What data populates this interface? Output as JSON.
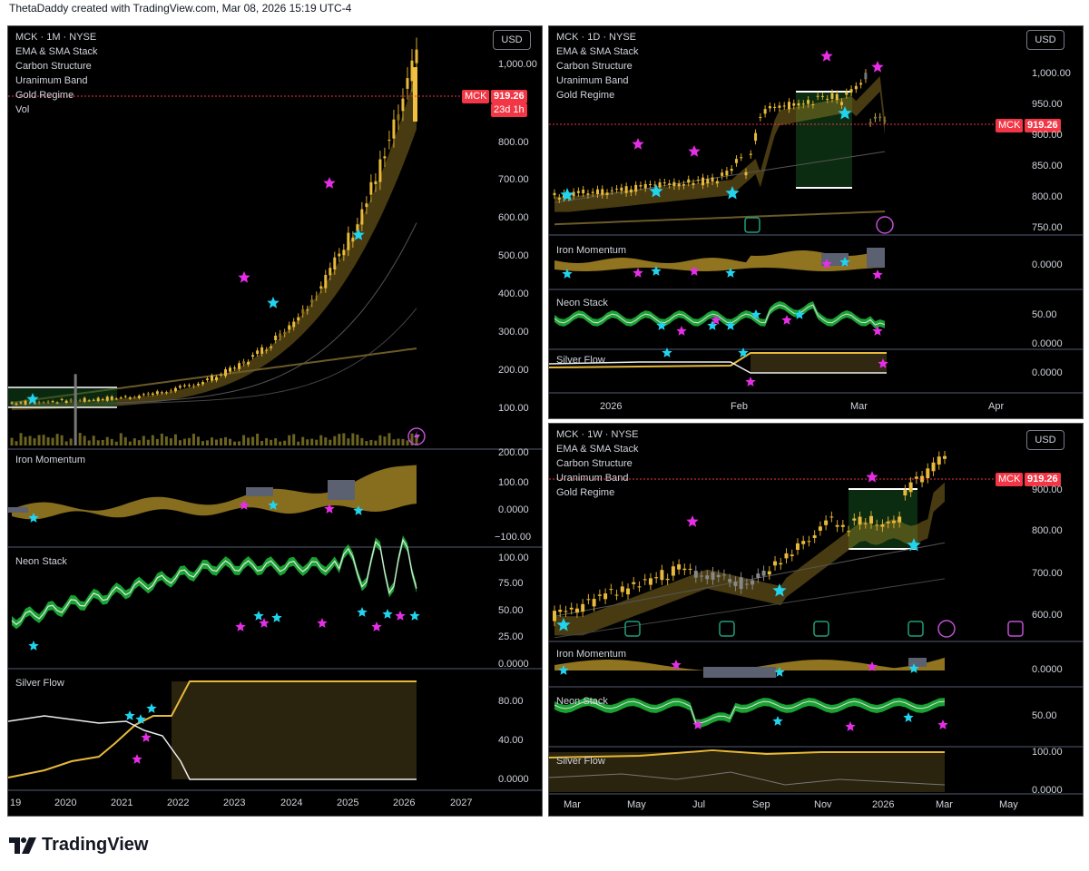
{
  "header": {
    "text": "ThetaDaddy created with TradingView.com, Mar 08, 2026 15:19 UTC-4"
  },
  "brand": {
    "name": "TradingView"
  },
  "colors": {
    "bg": "#000000",
    "gold": "#d4a829",
    "magenta": "#e52ee5",
    "cyan": "#22d3ee",
    "green": "#22c55e",
    "red": "#f23645"
  },
  "common": {
    "currency": "USD",
    "ticker": "MCK",
    "price": "919.26",
    "indicators": [
      "EMA & SMA Stack",
      "Carbon Structure",
      "Uranimum Band",
      "Gold Regime"
    ],
    "panes": {
      "iron": "Iron Momentum",
      "neon": "Neon Stack",
      "silver": "Silver Flow"
    }
  },
  "monthly": {
    "title": "MCK · 1M · NYSE",
    "vol": "Vol",
    "countdown": "23d 1h",
    "price_axis": [
      "1,000.00",
      "900.00",
      "800.00",
      "700.00",
      "600.00",
      "500.00",
      "400.00",
      "300.00",
      "200.00",
      "100.00"
    ],
    "iron_axis": [
      "200.00",
      "100.00",
      "0.0000",
      "−100.00"
    ],
    "neon_axis": [
      "100.00",
      "75.00",
      "50.00",
      "25.00",
      "0.0000"
    ],
    "silver_axis": [
      "80.00",
      "40.00",
      "0.0000"
    ],
    "time_axis": [
      "19",
      "2020",
      "2021",
      "2022",
      "2023",
      "2024",
      "2025",
      "2026",
      "2027"
    ]
  },
  "daily": {
    "title": "MCK · 1D · NYSE",
    "price_axis": [
      "1,000.00",
      "950.00",
      "900.00",
      "850.00",
      "800.00",
      "750.00"
    ],
    "iron_axis": [
      "0.0000"
    ],
    "neon_axis": [
      "50.00",
      "0.0000"
    ],
    "silver_axis": [
      "0.0000"
    ],
    "time_axis": [
      "2026",
      "Feb",
      "Mar",
      "Apr"
    ]
  },
  "weekly": {
    "title": "MCK · 1W · NYSE",
    "price_axis": [
      "900.00",
      "800.00",
      "700.00",
      "600.00"
    ],
    "iron_axis": [
      "0.0000"
    ],
    "neon_axis": [
      "50.00"
    ],
    "silver_axis": [
      "100.00",
      "0.0000"
    ],
    "time_axis": [
      "Mar",
      "May",
      "Jul",
      "Sep",
      "Nov",
      "2026",
      "Mar",
      "May"
    ]
  }
}
